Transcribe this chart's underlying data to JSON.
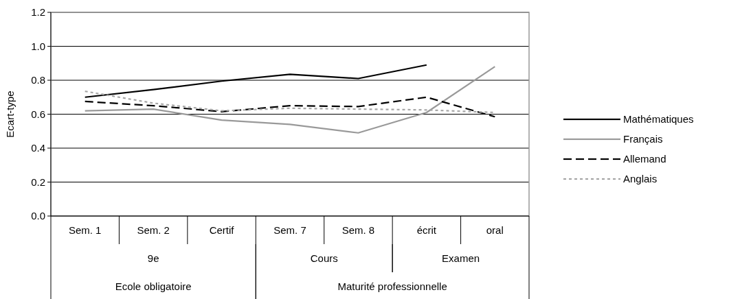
{
  "chart_data": {
    "type": "line",
    "ylabel": "Ecart-type",
    "categories": [
      "Sem. 1",
      "Sem. 2",
      "Certif",
      "Sem. 7",
      "Sem. 8",
      "écrit",
      "oral"
    ],
    "series": [
      {
        "name": "Mathématiques",
        "color": "#000000",
        "line_style": "solid",
        "values": [
          0.7,
          0.745,
          0.795,
          0.835,
          0.81,
          0.89,
          null
        ]
      },
      {
        "name": "Français",
        "color": "#999999",
        "line_style": "solid",
        "values": [
          0.62,
          0.63,
          0.565,
          0.54,
          0.49,
          0.61,
          0.88
        ]
      },
      {
        "name": "Allemand",
        "color": "#000000",
        "line_style": "dashed",
        "values": [
          0.675,
          0.65,
          0.615,
          0.65,
          0.645,
          0.7,
          0.585
        ]
      },
      {
        "name": "Anglais",
        "color": "#a6a6a6",
        "line_style": "dotted",
        "values": [
          0.735,
          0.665,
          0.62,
          0.635,
          0.63,
          0.625,
          0.61
        ]
      }
    ],
    "ylim": [
      0,
      1.2
    ],
    "yticks": [
      {
        "value": 0,
        "label": "0.0"
      },
      {
        "value": 0.2,
        "label": "0.2"
      },
      {
        "value": 0.4,
        "label": "0.4"
      },
      {
        "value": 0.6,
        "label": "0.6"
      },
      {
        "value": 0.8,
        "label": "0.8"
      },
      {
        "value": 1,
        "label": "1.0"
      },
      {
        "value": 1.2,
        "label": "1.2"
      }
    ],
    "grid": "y",
    "legend": "right",
    "marker": "none",
    "annotations": [
      "9e",
      "Cours",
      "Examen",
      "Ecole obligatoire",
      "Maturité professionnelle"
    ]
  }
}
